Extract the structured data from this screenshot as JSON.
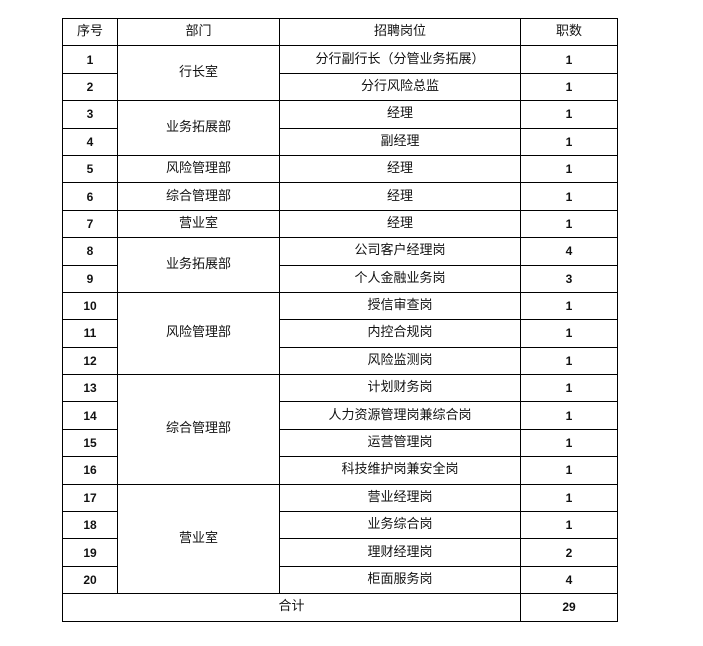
{
  "table": {
    "headers": [
      "序号",
      "部门",
      "招聘岗位",
      "职数"
    ],
    "rows": [
      {
        "no": "1",
        "dept": "行长室",
        "dept_span": 2,
        "position": "分行副行长（分管业务拓展）",
        "count": "1"
      },
      {
        "no": "2",
        "position": "分行风险总监",
        "count": "1"
      },
      {
        "no": "3",
        "dept": "业务拓展部",
        "dept_span": 2,
        "position": "经理",
        "count": "1"
      },
      {
        "no": "4",
        "position": "副经理",
        "count": "1"
      },
      {
        "no": "5",
        "dept": "风险管理部",
        "dept_span": 1,
        "position": "经理",
        "count": "1"
      },
      {
        "no": "6",
        "dept": "综合管理部",
        "dept_span": 1,
        "position": "经理",
        "count": "1"
      },
      {
        "no": "7",
        "dept": "营业室",
        "dept_span": 1,
        "position": "经理",
        "count": "1"
      },
      {
        "no": "8",
        "dept": "业务拓展部",
        "dept_span": 2,
        "position": "公司客户经理岗",
        "count": "4"
      },
      {
        "no": "9",
        "position": "个人金融业务岗",
        "count": "3"
      },
      {
        "no": "10",
        "dept": "风险管理部",
        "dept_span": 3,
        "position": "授信审查岗",
        "count": "1"
      },
      {
        "no": "11",
        "position": "内控合规岗",
        "count": "1"
      },
      {
        "no": "12",
        "position": "风险监测岗",
        "count": "1"
      },
      {
        "no": "13",
        "dept": "综合管理部",
        "dept_span": 4,
        "position": "计划财务岗",
        "count": "1"
      },
      {
        "no": "14",
        "position": "人力资源管理岗兼综合岗",
        "count": "1"
      },
      {
        "no": "15",
        "position": "运营管理岗",
        "count": "1"
      },
      {
        "no": "16",
        "position": "科技维护岗兼安全岗",
        "count": "1"
      },
      {
        "no": "17",
        "dept": "营业室",
        "dept_span": 4,
        "position": "营业经理岗",
        "count": "1"
      },
      {
        "no": "18",
        "position": "业务综合岗",
        "count": "1"
      },
      {
        "no": "19",
        "position": "理财经理岗",
        "count": "2"
      },
      {
        "no": "20",
        "position": "柜面服务岗",
        "count": "4"
      }
    ],
    "total": {
      "label": "合计",
      "count": "29"
    }
  }
}
